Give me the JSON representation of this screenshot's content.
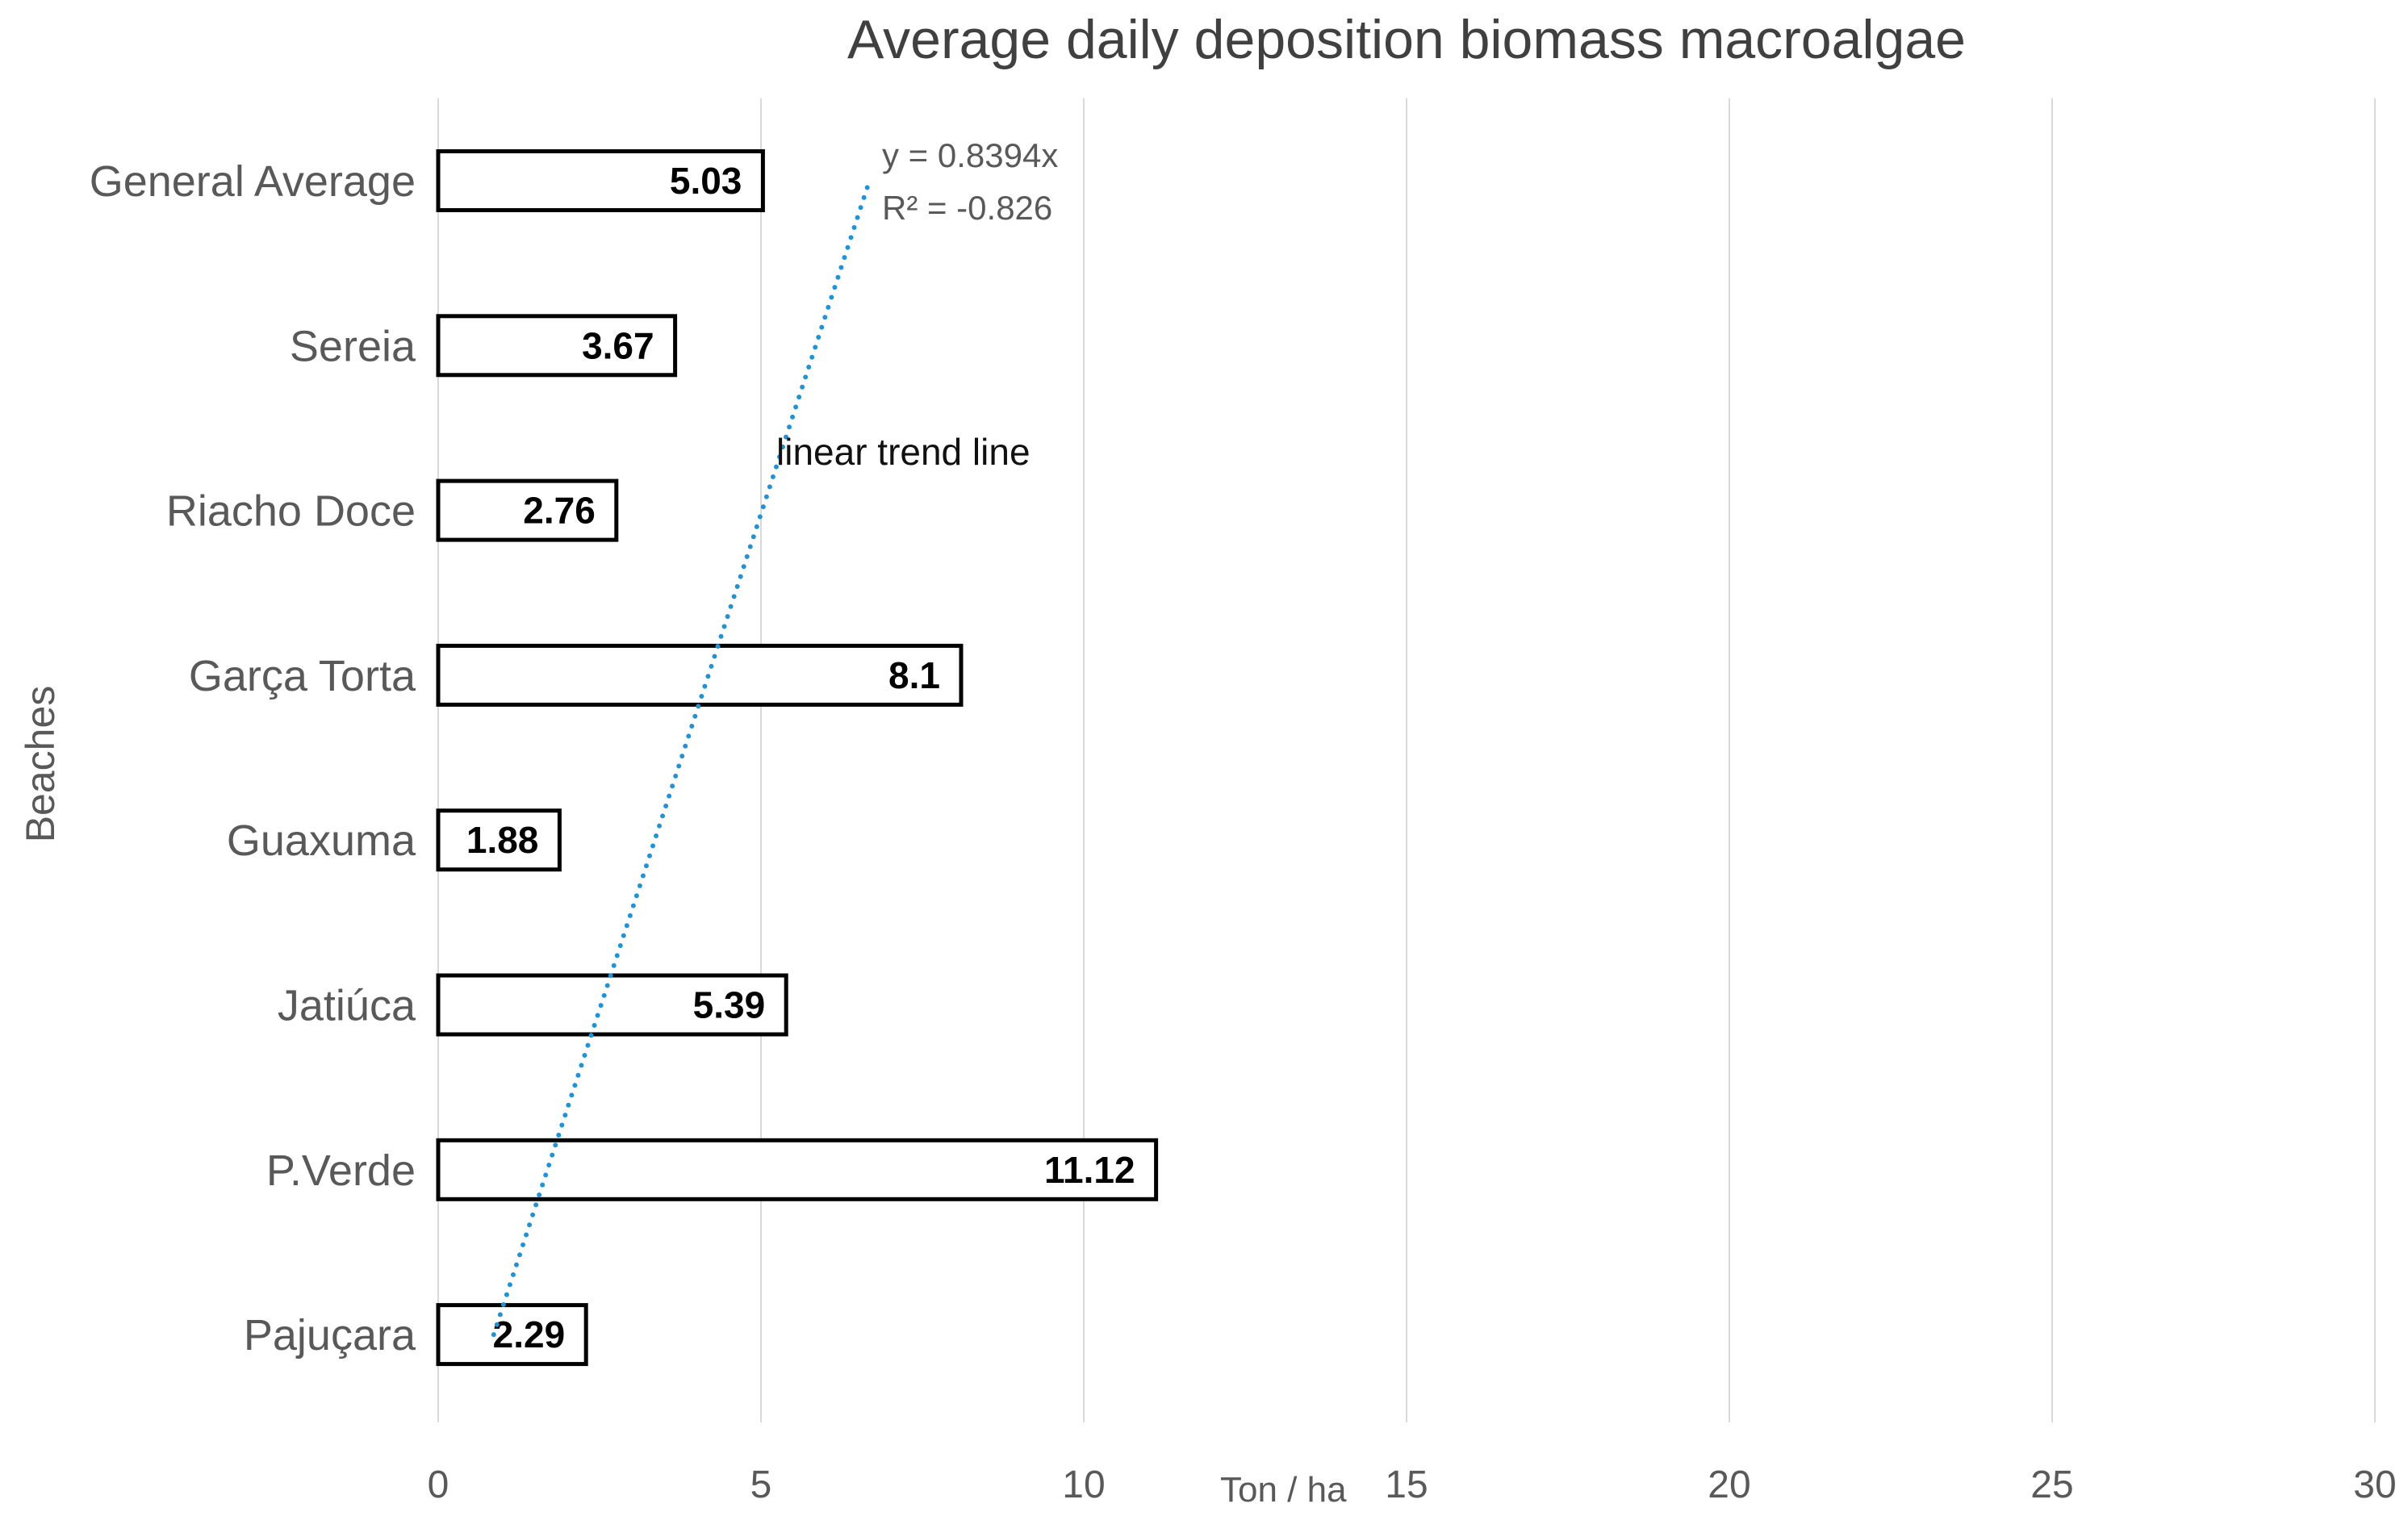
{
  "chart_data": {
    "type": "bar",
    "orientation": "horizontal",
    "title": "Average daily deposition biomass macroalgae",
    "xlabel": "Ton / ha",
    "ylabel": "Beaches",
    "categories": [
      "General Average",
      "Sereia",
      "Riacho Doce",
      "Garça Torta",
      "Guaxuma",
      "Jatiúca",
      "P.Verde",
      "Pajuçara"
    ],
    "values": [
      5.03,
      3.67,
      2.76,
      8.1,
      1.88,
      5.39,
      11.12,
      2.29
    ],
    "value_labels": [
      "5.03",
      "3.67",
      "2.76",
      "8.1",
      "1.88",
      "5.39",
      "11.12",
      "2.29"
    ],
    "x_ticks": [
      0,
      5,
      10,
      15,
      20,
      25,
      30
    ],
    "x_tick_labels": [
      "0",
      "5",
      "10",
      "15",
      "20",
      "25",
      "30"
    ],
    "xlim": [
      0,
      30
    ],
    "grid": "vertical-gridlines-on",
    "legend": "none",
    "bar_fill": "#FFFFFF",
    "bar_border": "#000000",
    "trendline": {
      "label": "linear trend line",
      "equation": "y = 0.8394x",
      "r_squared": "R² = -0.826",
      "style": "dotted",
      "color": "#2292D5",
      "x_start_units": 0.86,
      "x_end_units": 6.66
    },
    "colors": {
      "title_text": "#404040",
      "axis_text": "#595959",
      "value_text": "#000000",
      "gridline": "#D9D9D9"
    }
  }
}
